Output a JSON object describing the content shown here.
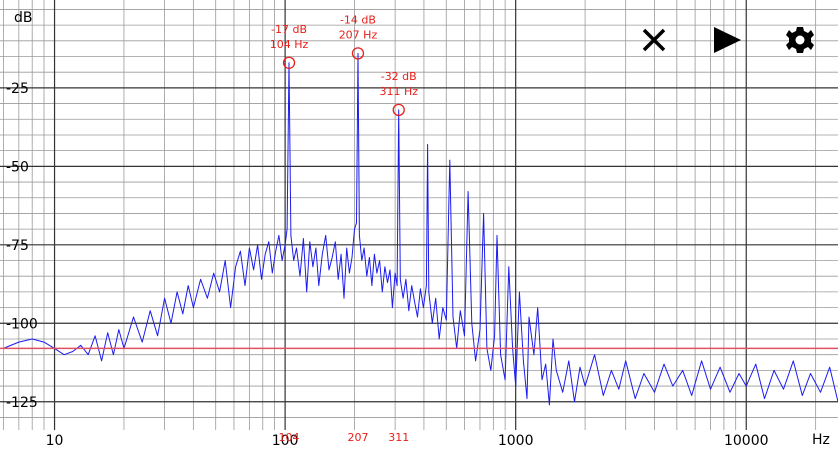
{
  "chart_data": {
    "type": "line",
    "xlabel": "Hz",
    "ylabel": "dB",
    "log_x": true,
    "xlim": [
      5.8,
      25000
    ],
    "ylim": [
      -134,
      3
    ],
    "xticks": [
      10,
      100,
      1000,
      10000
    ],
    "yticks": [
      -25,
      -50,
      -75,
      -100,
      -125
    ],
    "x_minor_grid": [
      6,
      7,
      8,
      9,
      20,
      30,
      40,
      50,
      60,
      70,
      80,
      90,
      200,
      300,
      400,
      500,
      600,
      700,
      800,
      900,
      2000,
      3000,
      4000,
      5000,
      6000,
      7000,
      8000,
      9000,
      20000
    ],
    "y_minor_grid": [
      0,
      -5,
      -10,
      -15,
      -20,
      -30,
      -35,
      -40,
      -45,
      -55,
      -60,
      -65,
      -70,
      -80,
      -85,
      -90,
      -95,
      -105,
      -110,
      -115,
      -120,
      -130
    ],
    "grid": true,
    "reference_line": -108,
    "reference_color": "#e05060",
    "x": [
      6,
      7,
      8,
      9,
      10,
      11,
      12,
      13,
      14,
      15,
      16,
      17,
      18,
      19,
      20,
      22,
      24,
      26,
      28,
      30,
      32,
      34,
      36,
      38,
      40,
      43,
      46,
      49,
      52,
      55,
      58,
      61,
      64,
      67,
      70,
      73,
      76,
      79,
      82,
      85,
      88,
      91,
      94,
      97,
      100,
      102,
      104,
      106,
      109,
      112,
      116,
      120,
      124,
      128,
      132,
      136,
      140,
      145,
      150,
      155,
      160,
      165,
      170,
      175,
      180,
      185,
      190,
      195,
      200,
      204,
      207,
      210,
      215,
      220,
      226,
      232,
      238,
      244,
      250,
      257,
      264,
      271,
      278,
      285,
      292,
      300,
      306,
      311,
      316,
      325,
      334,
      344,
      354,
      364,
      375,
      386,
      398,
      410,
      415,
      420,
      435,
      450,
      466,
      483,
      500,
      518,
      535,
      555,
      575,
      600,
      622,
      645,
      670,
      700,
      726,
      750,
      780,
      810,
      830,
      860,
      900,
      934,
      970,
      1000,
      1038,
      1080,
      1120,
      1142,
      1200,
      1246,
      1300,
      1350,
      1400,
      1452,
      1500,
      1600,
      1700,
      1800,
      1900,
      2000,
      2200,
      2400,
      2600,
      2800,
      3000,
      3300,
      3600,
      4000,
      4400,
      4800,
      5300,
      5800,
      6400,
      7000,
      7700,
      8500,
      9300,
      10000,
      11000,
      12000,
      13200,
      14500,
      16000,
      17500,
      19000,
      21000,
      23000,
      25000
    ],
    "series": [
      {
        "color": "#1c1cf0",
        "values": [
          -108,
          -106,
          -105,
          -106,
          -108,
          -110,
          -109,
          -107,
          -110,
          -104,
          -112,
          -103,
          -110,
          -102,
          -108,
          -98,
          -106,
          -96,
          -104,
          -92,
          -100,
          -90,
          -97,
          -88,
          -95,
          -86,
          -92,
          -84,
          -90,
          -80,
          -95,
          -82,
          -77,
          -88,
          -76,
          -83,
          -75,
          -86,
          -78,
          -74,
          -84,
          -77,
          -72,
          -80,
          -75,
          -70,
          -17,
          -72,
          -80,
          -76,
          -85,
          -73,
          -90,
          -74,
          -82,
          -76,
          -88,
          -78,
          -72,
          -83,
          -79,
          -74,
          -86,
          -78,
          -92,
          -76,
          -84,
          -79,
          -70,
          -68,
          -14,
          -72,
          -80,
          -76,
          -85,
          -79,
          -88,
          -78,
          -84,
          -80,
          -90,
          -82,
          -87,
          -83,
          -95,
          -84,
          -88,
          -32,
          -86,
          -92,
          -86,
          -96,
          -88,
          -93,
          -98,
          -89,
          -95,
          -88,
          -43,
          -90,
          -100,
          -92,
          -105,
          -95,
          -99,
          -48,
          -98,
          -108,
          -96,
          -104,
          -58,
          -100,
          -112,
          -102,
          -65,
          -108,
          -115,
          -104,
          -72,
          -110,
          -118,
          -82,
          -108,
          -120,
          -90,
          -112,
          -124,
          -98,
          -110,
          -95,
          -118,
          -113,
          -126,
          -105,
          -115,
          -122,
          -112,
          -125,
          -114,
          -120,
          -110,
          -123,
          -115,
          -121,
          -112,
          -124,
          -116,
          -122,
          -113,
          -120,
          -115,
          -123,
          -112,
          -121,
          -114,
          -122,
          -116,
          -120,
          -113,
          -124,
          -115,
          -121,
          -112,
          -123,
          -116,
          -122,
          -114,
          -125
        ]
      }
    ],
    "peaks": [
      {
        "freq": 104,
        "db": -17,
        "db_label": "-17 dB",
        "freq_label": "104 Hz"
      },
      {
        "freq": 207,
        "db": -14,
        "db_label": "-14 dB",
        "freq_label": "207 Hz"
      },
      {
        "freq": 311,
        "db": -32,
        "db_label": "-32 dB",
        "freq_label": "311 Hz"
      }
    ],
    "peak_color": "#e8201a"
  }
}
